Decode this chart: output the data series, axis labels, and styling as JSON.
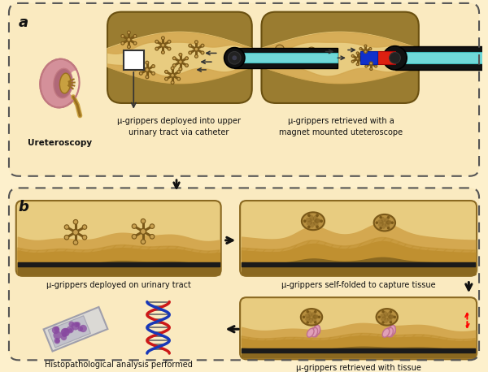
{
  "bg_color": "#fdf0cc",
  "panel_a_bg": "#faeac0",
  "panel_b_bg": "#faeac0",
  "border_color": "#555555",
  "text_color": "#1a1a1a",
  "kidney_pink": "#d4909a",
  "kidney_outer": "#c07880",
  "kidney_pelvis": "#b06878",
  "kidney_yellow": "#c8a040",
  "kidney_shadow": "#9a7020",
  "tube_cyan": "#70d8d8",
  "tube_black": "#1a1a1a",
  "tube_wall_outer": "#9a7c30",
  "tube_wall_mid": "#c8a040",
  "tube_lumen_color": "#e8cc80",
  "tube_mucosa": "#d4a850",
  "magnet_red": "#dd2010",
  "magnet_blue": "#1030cc",
  "tissue_surface": "#d4a850",
  "tissue_dark": "#8a6820",
  "tissue_ground1": "#c09030",
  "tissue_ground2": "#8a6820",
  "tissue_ground3": "#6a4c10",
  "tissue_black_band": "#1a1a1a",
  "gripper_body": "#c8a050",
  "gripper_outline": "#7a5818",
  "gripper_folded_body": "#b89040",
  "gripper_folded_dark": "#7a5818",
  "pink_tissue": "#e0a0b8",
  "pink_tissue_dark": "#c07090",
  "dna_red": "#cc1818",
  "dna_blue": "#1838b8",
  "slide_light": "#d8d8d8",
  "slide_mid": "#b8b8c8",
  "slide_dark": "#9898a8",
  "purple_cells": "#8848a0",
  "zoom_box_color": "#333333",
  "label1": "μ-grippers deployed into upper\nurinary tract via catheter",
  "label2": "μ-grippers retrieved with a\nmagnet mounted uteteroscope",
  "label3": "μ-grippers deployed on urinary tract",
  "label4": "μ-grippers self-folded to capture tissue",
  "label5": "Histopathological analysis performed",
  "label6": "μ-grippers retrieved with tissue",
  "label_kidney": "Ureteroscopy"
}
